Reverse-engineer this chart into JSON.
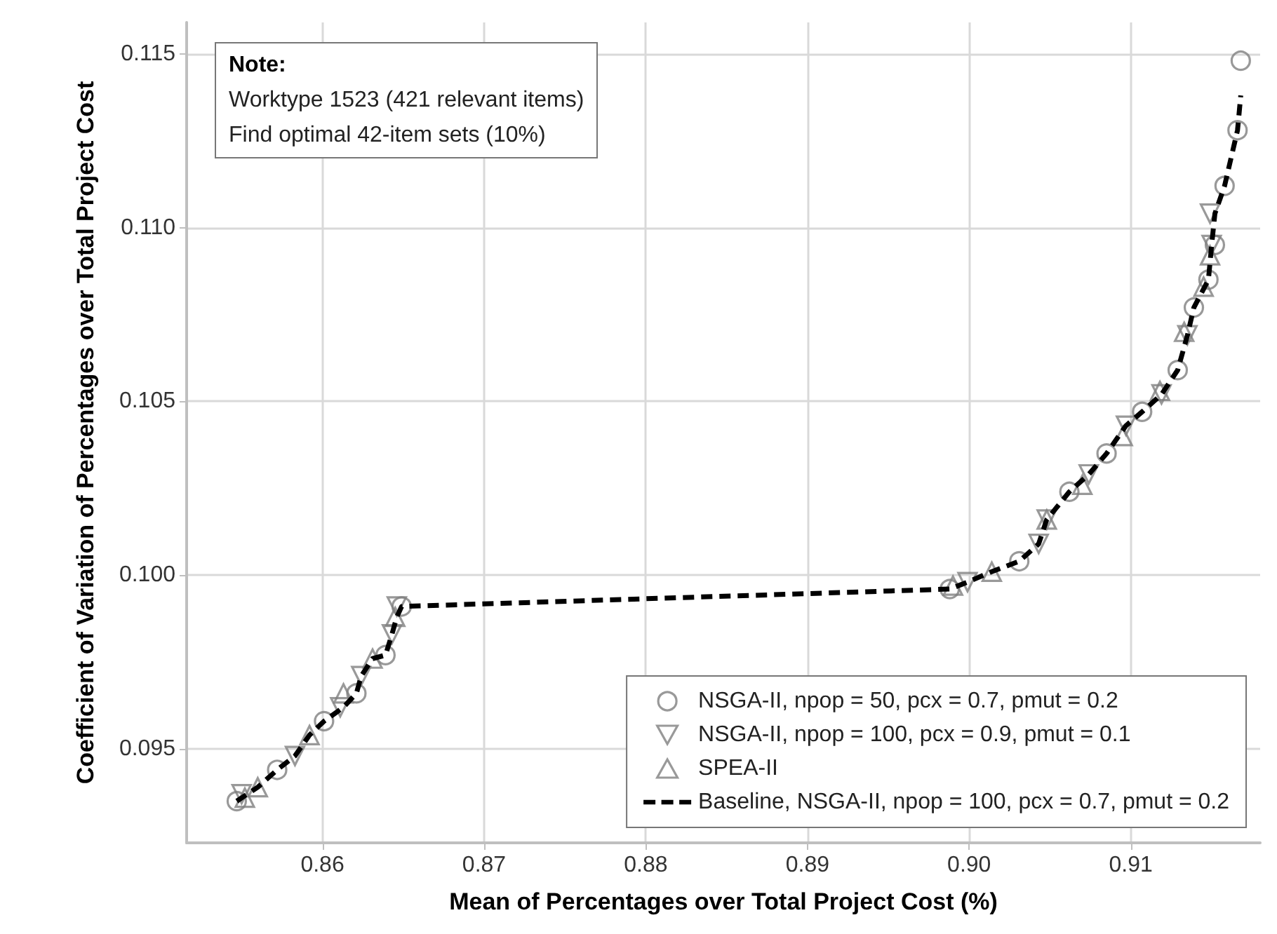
{
  "chart_data": {
    "type": "scatter",
    "xlabel": "Mean of Percentages over Total Project Cost (%)",
    "ylabel": "Coefficient of Variation of Percentages over Total Project Cost",
    "annotations": [
      "Note:\nWorktype 1523 (421 relevant items)\nFind optimal 42-item sets (10%)"
    ],
    "xlim": [
      0.8516,
      0.918
    ],
    "xticks": [
      0.86,
      0.87,
      0.88,
      0.89,
      {
        "value": 0.9,
        "label": "0.90"
      },
      0.91
    ],
    "ylim": [
      0.0923,
      0.1159
    ],
    "yticks": [
      0.095,
      {
        "value": 0.1,
        "label": "0.100"
      },
      0.105,
      {
        "value": 0.11,
        "label": "0.110"
      },
      0.115
    ],
    "grid": true,
    "legend": "bottom right",
    "series": [
      {
        "name": "NSGA-II, npop = 50, pcx = 0.7, pmut = 0.2",
        "color": "#808080",
        "marker": "circle",
        "x": [
          0.8547,
          0.8572,
          0.8601,
          0.8621,
          0.8639,
          0.8649,
          0.8988,
          0.9031,
          0.9062,
          0.9085,
          0.9107,
          0.9129,
          0.9139,
          0.9148,
          0.9152,
          0.9158,
          0.9166,
          0.9168
        ],
        "values": [
          0.0935,
          0.0944,
          0.0958,
          0.0966,
          0.0977,
          0.0991,
          0.0996,
          0.1004,
          0.1024,
          0.1035,
          0.1047,
          0.1059,
          0.1077,
          0.1085,
          0.1095,
          0.1112,
          0.1128,
          0.1148
        ]
      },
      {
        "name": "NSGA-II, npop = 100, pcx = 0.9, pmut = 0.1",
        "color": "#808080",
        "marker": "triangle_down",
        "x": [
          0.855,
          0.8583,
          0.8611,
          0.8624,
          0.8643,
          0.8646,
          0.8999,
          0.9043,
          0.9048,
          0.9074,
          0.9097,
          0.9119,
          0.9135,
          0.915,
          0.9149
        ],
        "values": [
          0.0937,
          0.0948,
          0.0962,
          0.0971,
          0.0983,
          0.0991,
          0.0998,
          0.1009,
          0.1016,
          0.1029,
          0.1043,
          0.1052,
          0.1069,
          0.1095,
          0.1104
        ]
      },
      {
        "name": "SPEA-II",
        "color": "#808080",
        "marker": "triangle",
        "x": [
          0.8552,
          0.856,
          0.8592,
          0.8613,
          0.8631,
          0.8645,
          0.899,
          0.9014,
          0.9048,
          0.907,
          0.9095,
          0.9118,
          0.9133,
          0.9145,
          0.9149
        ],
        "values": [
          0.0936,
          0.0939,
          0.0954,
          0.0966,
          0.0976,
          0.0988,
          0.0997,
          0.1001,
          0.1016,
          0.1026,
          0.104,
          0.1053,
          0.107,
          0.1083,
          0.1092
        ]
      },
      {
        "name": "Baseline, NSGA-II, npop = 100, pcx = 0.7, pmut = 0.2",
        "type": "line",
        "color": "#000000",
        "marker": "none",
        "line_style": "dashed",
        "x": [
          0.8547,
          0.856,
          0.8572,
          0.8583,
          0.8592,
          0.8601,
          0.8613,
          0.8621,
          0.8624,
          0.8631,
          0.8639,
          0.8643,
          0.8646,
          0.8649,
          0.865,
          0.8988,
          0.8999,
          0.9014,
          0.9031,
          0.9043,
          0.9048,
          0.9062,
          0.9074,
          0.9085,
          0.9097,
          0.9107,
          0.9119,
          0.9129,
          0.9135,
          0.9139,
          0.9148,
          0.915,
          0.9152,
          0.9158,
          0.9166,
          0.9168
        ],
        "values": [
          0.0935,
          0.0939,
          0.0944,
          0.0948,
          0.0954,
          0.0958,
          0.0962,
          0.0966,
          0.0971,
          0.0976,
          0.0977,
          0.0983,
          0.0988,
          0.0991,
          0.0991,
          0.0996,
          0.0998,
          0.1001,
          0.1004,
          0.1009,
          0.1016,
          0.1024,
          0.1029,
          0.1035,
          0.1043,
          0.1047,
          0.1052,
          0.1059,
          0.1069,
          0.1077,
          0.1085,
          0.1095,
          0.1104,
          0.1112,
          0.1128,
          0.1138
        ]
      }
    ]
  }
}
